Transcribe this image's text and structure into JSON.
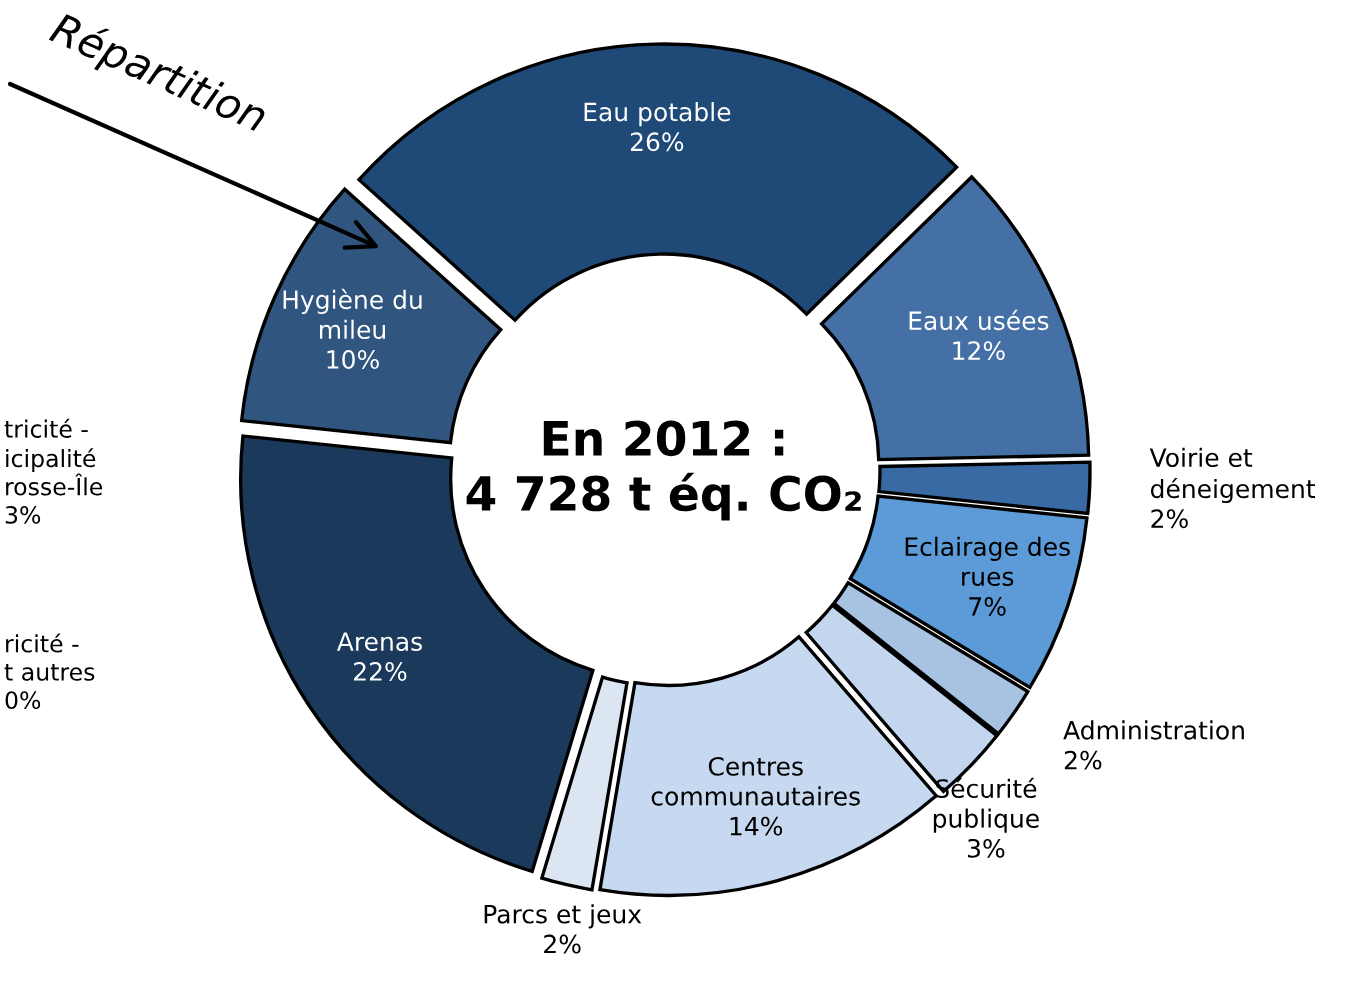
{
  "chart_data": {
    "type": "donut",
    "title": "En 2012 :\n4 728 t éq. CO₂",
    "categories": [
      "Eau potable",
      "Eaux usées",
      "Voirie et déneigement",
      "Eclairage des rues",
      "Administration",
      "Sécurité publique",
      "Centres communautaires",
      "Parcs et jeux",
      "Arenas",
      "Hygiène du mileu"
    ],
    "values": [
      26,
      12,
      2,
      7,
      2,
      3,
      14,
      2,
      22,
      10
    ],
    "colors": [
      "#1f4a78",
      "#4470a6",
      "#3a6aa3",
      "#5c9bd8",
      "#a8c2e2",
      "#c3d6ee",
      "#c6d9f0",
      "#dce6f2",
      "#1b395b",
      "#30557f"
    ],
    "value_labels": [
      "26%",
      "12%",
      "2%",
      "7%",
      "2%",
      "3%",
      "14%",
      "2%",
      "22%",
      "10%"
    ],
    "annotations": [
      "Répartition",
      "tricité -\nicipalité\nrosse-Île\n3%",
      "ricité -\nt autres\n0%"
    ]
  }
}
